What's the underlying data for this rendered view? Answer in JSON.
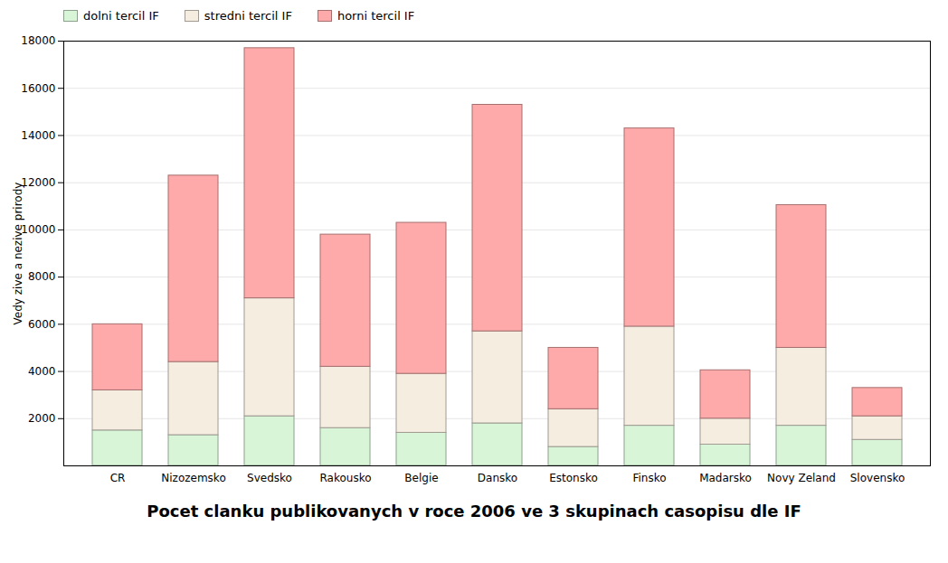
{
  "chart_data": {
    "type": "bar",
    "stacked": true,
    "title": "Pocet clanku publikovanych v roce 2006 ve 3 skupinach casopisu dle IF",
    "ylabel": "Vedy zive a nezive prirody",
    "categories": [
      "CR",
      "Nizozemsko",
      "Svedsko",
      "Rakousko",
      "Belgie",
      "Dansko",
      "Estonsko",
      "Finsko",
      "Madarsko",
      "Novy Zeland",
      "Slovensko"
    ],
    "series": [
      {
        "name": "dolni tercil IF",
        "color": "#d8f5d8",
        "values": [
          1500,
          1300,
          2100,
          1600,
          1400,
          1800,
          800,
          1700,
          900,
          1700,
          1100
        ]
      },
      {
        "name": "stredni tercil IF",
        "color": "#f5ede0",
        "values": [
          1700,
          3100,
          5000,
          2600,
          2500,
          3900,
          1600,
          4200,
          1100,
          3300,
          1000
        ]
      },
      {
        "name": "horni tercil IF",
        "color": "#ffaaaa",
        "values": [
          2800,
          7900,
          10600,
          5600,
          6400,
          9600,
          2600,
          8400,
          2050,
          6050,
          1200
        ]
      }
    ],
    "ylim": [
      0,
      18000
    ],
    "yticks": [
      2000,
      4000,
      6000,
      8000,
      10000,
      12000,
      14000,
      16000,
      18000
    ],
    "grid": true,
    "legend": "top"
  }
}
